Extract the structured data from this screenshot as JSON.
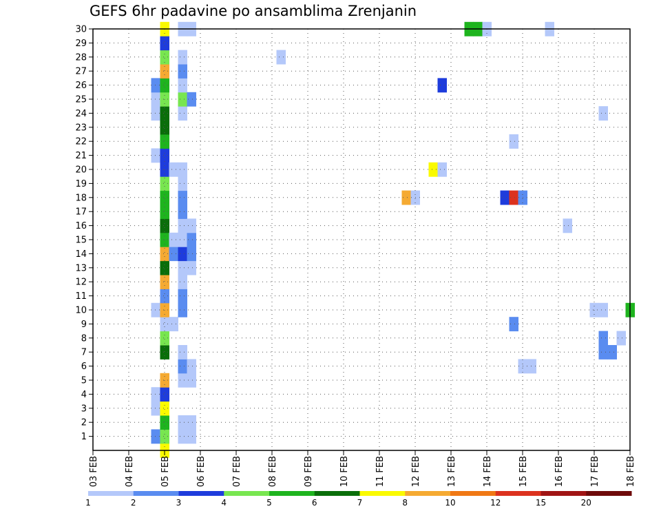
{
  "chart_data": {
    "type": "heatmap",
    "title": "GEFS 6hr padavine po ansamblima Zrenjanin",
    "x_tick_labels": [
      "03 FEB",
      "04 FEB",
      "05 FEB",
      "06 FEB",
      "07 FEB",
      "08 FEB",
      "09 FEB",
      "10 FEB",
      "11 FEB",
      "12 FEB",
      "13 FEB",
      "14 FEB",
      "15 FEB",
      "16 FEB",
      "17 FEB",
      "18 FEB"
    ],
    "y_tick_labels": [
      "1",
      "2",
      "3",
      "4",
      "5",
      "6",
      "7",
      "8",
      "9",
      "10",
      "11",
      "12",
      "13",
      "14",
      "15",
      "16",
      "17",
      "18",
      "19",
      "20",
      "21",
      "22",
      "23",
      "24",
      "25",
      "26",
      "27",
      "28",
      "29",
      "30"
    ],
    "x_range_days": [
      0,
      15
    ],
    "y_range_members": [
      0,
      30
    ],
    "grid": true,
    "time_step_hours": 6,
    "colorbar": {
      "labels": [
        "1",
        "2",
        "3",
        "4",
        "5",
        "6",
        "7",
        "8",
        "10",
        "12",
        "15",
        "20"
      ],
      "colors": [
        "#b4c8fa",
        "#5a8cf0",
        "#1e3cdc",
        "#78e650",
        "#1eb41e",
        "#0a6e0a",
        "#fafa00",
        "#f5aa32",
        "#f07814",
        "#dc321e",
        "#a01414",
        "#6e0a0a"
      ]
    },
    "cells_day_member_class": [
      [
        1.75,
        1,
        2
      ],
      [
        1.75,
        10,
        1
      ],
      [
        1.75,
        21,
        1
      ],
      [
        1.75,
        24,
        1
      ],
      [
        1.75,
        25,
        1
      ],
      [
        1.75,
        26,
        2
      ],
      [
        1.75,
        3,
        1
      ],
      [
        1.75,
        4,
        1
      ],
      [
        2.0,
        0,
        7
      ],
      [
        2.0,
        1,
        4
      ],
      [
        2.0,
        2,
        5
      ],
      [
        2.0,
        3,
        7
      ],
      [
        2.0,
        4,
        3
      ],
      [
        2.0,
        5,
        8
      ],
      [
        2.0,
        7,
        6
      ],
      [
        2.0,
        8,
        4
      ],
      [
        2.0,
        9,
        1
      ],
      [
        2.0,
        10,
        8
      ],
      [
        2.0,
        11,
        2
      ],
      [
        2.0,
        12,
        8
      ],
      [
        2.0,
        13,
        6
      ],
      [
        2.0,
        14,
        8
      ],
      [
        2.0,
        15,
        5
      ],
      [
        2.0,
        16,
        6
      ],
      [
        2.0,
        17,
        5
      ],
      [
        2.0,
        18,
        5
      ],
      [
        2.0,
        19,
        4
      ],
      [
        2.0,
        20,
        3
      ],
      [
        2.0,
        21,
        3
      ],
      [
        2.0,
        22,
        5
      ],
      [
        2.0,
        23,
        6
      ],
      [
        2.0,
        24,
        6
      ],
      [
        2.0,
        25,
        4
      ],
      [
        2.0,
        26,
        5
      ],
      [
        2.0,
        27,
        8
      ],
      [
        2.0,
        28,
        4
      ],
      [
        2.0,
        29,
        3
      ],
      [
        2.0,
        30,
        7
      ],
      [
        2.25,
        9,
        1
      ],
      [
        2.25,
        14,
        2
      ],
      [
        2.25,
        15,
        1
      ],
      [
        2.25,
        20,
        1
      ],
      [
        2.5,
        1,
        1
      ],
      [
        2.5,
        2,
        1
      ],
      [
        2.5,
        5,
        1
      ],
      [
        2.5,
        6,
        2
      ],
      [
        2.5,
        7,
        1
      ],
      [
        2.5,
        10,
        2
      ],
      [
        2.5,
        11,
        2
      ],
      [
        2.5,
        12,
        1
      ],
      [
        2.5,
        13,
        1
      ],
      [
        2.5,
        14,
        3
      ],
      [
        2.5,
        15,
        1
      ],
      [
        2.5,
        16,
        1
      ],
      [
        2.5,
        17,
        2
      ],
      [
        2.5,
        18,
        2
      ],
      [
        2.5,
        19,
        1
      ],
      [
        2.5,
        20,
        1
      ],
      [
        2.5,
        24,
        1
      ],
      [
        2.5,
        25,
        4
      ],
      [
        2.5,
        26,
        1
      ],
      [
        2.5,
        27,
        2
      ],
      [
        2.5,
        28,
        1
      ],
      [
        2.5,
        30,
        1
      ],
      [
        2.75,
        1,
        1
      ],
      [
        2.75,
        2,
        1
      ],
      [
        2.75,
        5,
        1
      ],
      [
        2.75,
        6,
        1
      ],
      [
        2.75,
        13,
        1
      ],
      [
        2.75,
        14,
        2
      ],
      [
        2.75,
        15,
        2
      ],
      [
        2.75,
        16,
        1
      ],
      [
        2.75,
        25,
        2
      ],
      [
        2.75,
        30,
        1
      ],
      [
        5.25,
        28,
        1
      ],
      [
        8.75,
        18,
        8
      ],
      [
        9.0,
        18,
        1
      ],
      [
        9.5,
        20,
        7
      ],
      [
        9.75,
        20,
        1
      ],
      [
        9.75,
        26,
        3
      ],
      [
        10.5,
        30,
        5
      ],
      [
        10.75,
        30,
        5
      ],
      [
        11.0,
        30,
        1
      ],
      [
        11.5,
        18,
        3
      ],
      [
        11.75,
        18,
        10
      ],
      [
        12.0,
        18,
        2
      ],
      [
        11.75,
        9,
        2
      ],
      [
        11.75,
        22,
        1
      ],
      [
        12.0,
        6,
        1
      ],
      [
        12.25,
        6,
        1
      ],
      [
        12.75,
        30,
        1
      ],
      [
        13.25,
        16,
        1
      ],
      [
        14.0,
        10,
        1
      ],
      [
        14.25,
        10,
        1
      ],
      [
        14.25,
        7,
        2
      ],
      [
        14.25,
        8,
        2
      ],
      [
        14.5,
        7,
        2
      ],
      [
        14.25,
        24,
        1
      ],
      [
        14.75,
        8,
        1
      ],
      [
        15.0,
        10,
        5
      ]
    ]
  }
}
